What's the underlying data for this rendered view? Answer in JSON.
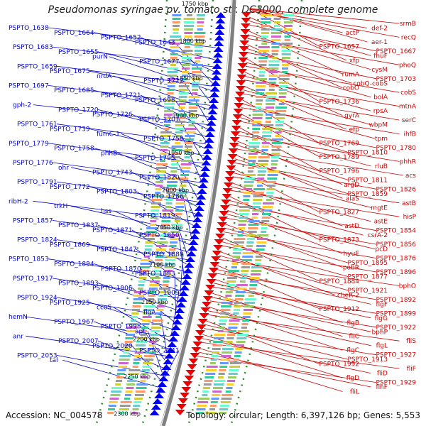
{
  "title": "Pseudomonas syringae pv. tomato str. DC3000, complete genome",
  "accession": "Accession: NC_004578",
  "topology": "Topology: circular; Length: 6,397,126 bp; Genes: 5,553",
  "colors": {
    "left_labels": "#0000cc",
    "right_labels": "#cc0000",
    "backbone": "#808080",
    "tick_dots": "#2a8a2a",
    "forward_arrows": "#0000ee",
    "reverse_arrows": "#ee0000"
  },
  "scale_ticks": [
    "1750 kbp",
    "1800 kbp",
    "1850 kbp",
    "1900 kbp",
    "1950 kbp",
    "2000 kbp",
    "2050 kbp",
    "2100 kbp",
    "2150 kbp",
    "2200 kbp",
    "2250 kbp",
    "2300 kbp"
  ],
  "left_labels": [
    "PSPTO_1638",
    "PSPTO_1664",
    "PSPTO_1652",
    "PSPTO_1643",
    "PSPTO_1683",
    "PSPTO_1655",
    "purN",
    "PSPTO_1677",
    "PSPTO_1659",
    "PSPTO_1675",
    "nrdA",
    "PSPTO_1722",
    "PSPTO_1697",
    "PSPTO_1685",
    "PSPTO_1721",
    "PSPTO_1698",
    "gph-2",
    "PSPTO_1720",
    "PSPTO_1726",
    "PSPTO_1707",
    "PSPTO_1761",
    "PSPTO_1739",
    "fumC-1",
    "PSPTO_1759",
    "PSPTO_1779",
    "PSPTO_1758",
    "phhB",
    "PSPTO_1795",
    "PSPTO_1776",
    "ohr",
    "PSPTO_1743",
    "PSPTO_1820",
    "PSPTO_1791",
    "PSPTO_1772",
    "PSPTO_1803",
    "PSPTO_1786",
    "ribH-2",
    "trkH",
    "hss",
    "PSPTO_1819",
    "PSPTO_1857",
    "PSPTO_1837",
    "PSPTO_1871",
    "PSPTO_1850",
    "PSPTO_1824",
    "PSPTO_1869",
    "PSPTO_1847",
    "PSPTO_1888",
    "PSPTO_1853",
    "PSPTO_1894",
    "PSPTO_1870",
    "PSPTO_1883",
    "PSPTO_1917",
    "PSPTO_1893",
    "PSPTO_1906",
    "PSPTO_1909",
    "PSPTO_1924",
    "PSPTO_1925",
    "ccoS",
    "flgA",
    "hemN",
    "PSPTO_1967",
    "PSPTO_1998",
    "apt",
    "anr",
    "PSPTO_2007",
    "PSPTO_2020",
    "PSPTO_2041",
    "PSPTO_2053",
    "tal"
  ],
  "right_labels": [
    "srmB",
    "def-2",
    "actP",
    "recQ",
    "aer-1",
    "PSPTO_1657",
    "PSPTO_1667",
    "fhuF",
    "xfp",
    "phoQ",
    "cysM",
    "rumA",
    "PSPTO_1703",
    "cobQ-cobS",
    "cobO",
    "cobS",
    "bolA",
    "PSPTO_1736",
    "mtnA",
    "rpsA",
    "gyrA",
    "serC",
    "wbpM",
    "efp",
    "ihfB",
    "tpm",
    "PSPTO_1769",
    "PSPTO_1780",
    "PSPTO_1810",
    "PSPTO_1789",
    "phhR",
    "rluB",
    "PSPTO_1796",
    "acs",
    "PSPTO_1811",
    "argD",
    "PSPTO_1826",
    "PSPTO_1859",
    "alaS",
    "astB",
    "mgtE",
    "PSPTO_1827",
    "hisP",
    "astE",
    "astD",
    "PSPTO_1854",
    "csrA-2",
    "PSPTO_1873",
    "PSPTO_1856",
    "pcD",
    "hyuE",
    "PSPTO_1876",
    "PSPTO_1895",
    "pobR",
    "PSPTO_1896",
    "PSPTO_1877",
    "PSPTO_1884",
    "bphO",
    "PSPTO_1921",
    "cheR-2",
    "PSPTO_1892",
    "flgF",
    "PSPTO_1912",
    "PSPTO_1899",
    "flgG",
    "flgB",
    "PSPTO_1922",
    "bphP",
    "fliC",
    "fliS",
    "flgL",
    "flgC",
    "PSPTO_1927",
    "PSPTO_1913",
    "PSPTO_1992",
    "fliF",
    "fliD",
    "flgD",
    "PSPTO_1929",
    "flhF",
    "fliL"
  ]
}
